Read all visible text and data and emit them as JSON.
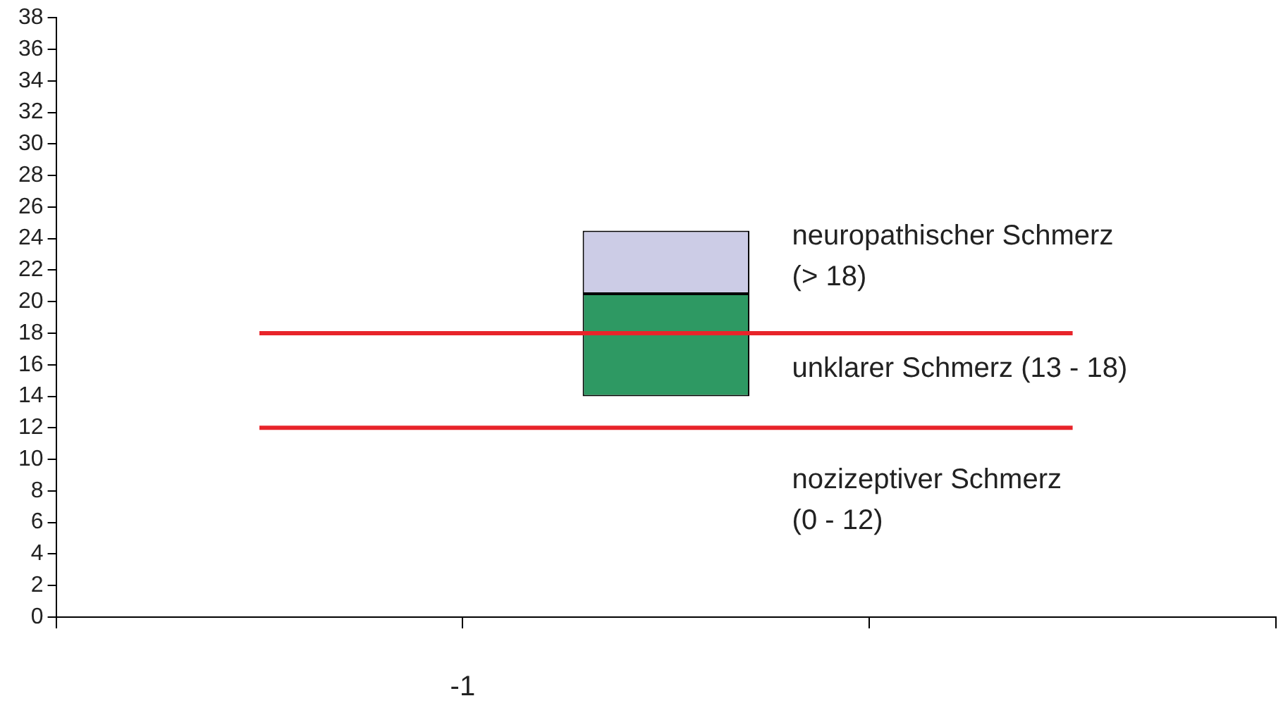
{
  "chart_data": {
    "type": "bar",
    "categories": [
      null,
      null,
      null
    ],
    "series": [
      {
        "color": "#2e9963",
        "base": [
          null,
          14,
          null
        ],
        "values": [
          null,
          6.5,
          null
        ]
      },
      {
        "color": "#cccce6",
        "base": [
          null,
          20.5,
          null
        ],
        "values": [
          null,
          4,
          null
        ]
      }
    ],
    "ylim": [
      0,
      38
    ],
    "yticks": [
      0,
      2,
      4,
      6,
      8,
      10,
      12,
      14,
      16,
      18,
      20,
      22,
      24,
      26,
      28,
      30,
      32,
      34,
      36,
      38
    ],
    "grid": false,
    "legend": false,
    "ref_lines": [
      {
        "axis": "y",
        "value": 18,
        "color": "#e8242a"
      },
      {
        "axis": "y",
        "value": 12,
        "color": "#e8242a"
      }
    ],
    "annotations": [
      "neuropathischer Schmerz\n(> 18)",
      "unklarer Schmerz (13 - 18)",
      "nozizeptiver Schmerz\n(0 - 12)",
      "-1"
    ]
  }
}
